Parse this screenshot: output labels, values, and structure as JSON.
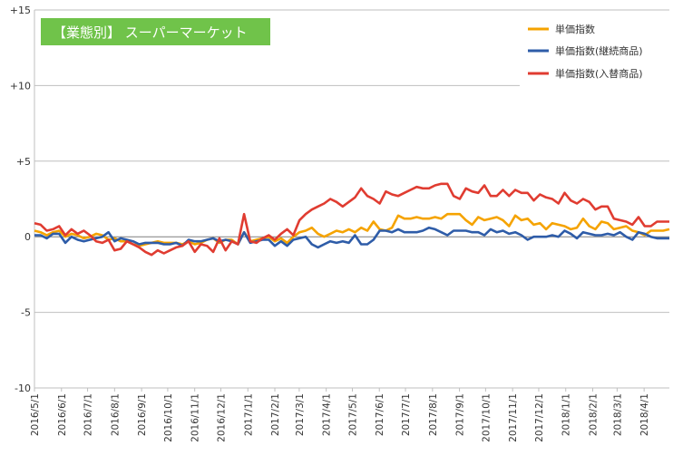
{
  "chart_data": {
    "type": "line",
    "title": "【業態別】 スーパーマーケット",
    "xlabel": "",
    "ylabel": "",
    "ylim": [
      -10,
      15
    ],
    "y_ticks": [
      {
        "value": 15,
        "label": "+15"
      },
      {
        "value": 10,
        "label": "+10"
      },
      {
        "value": 5,
        "label": "+5"
      },
      {
        "value": 0,
        "label": "0"
      },
      {
        "value": -5,
        "label": "-5"
      },
      {
        "value": -10,
        "label": "-10"
      }
    ],
    "x_start": "2016-05-01",
    "x_end": "2018-04-30",
    "x_tick_labels": [
      "2016/5/1",
      "2016/6/1",
      "2016/7/1",
      "2016/8/1",
      "2016/9/1",
      "2016/10/1",
      "2016/11/1",
      "2016/12/1",
      "2017/1/1",
      "2017/2/1",
      "2017/3/1",
      "2017/4/1",
      "2017/5/1",
      "2017/6/1",
      "2017/7/1",
      "2017/8/1",
      "2017/9/1",
      "2017/10/1",
      "2017/11/1",
      "2017/12/1",
      "2018/1/1",
      "2018/2/1",
      "2018/3/1",
      "2018/4/1"
    ],
    "grid": "horizontal",
    "legend_position": "top-right",
    "title_box_color": "#70c34a",
    "series": [
      {
        "name": "単価指数",
        "color": "#f5a300",
        "values": [
          0.4,
          0.3,
          0.1,
          0.3,
          0.4,
          0.0,
          0.2,
          0.1,
          -0.1,
          0.0,
          0.2,
          0.1,
          -0.2,
          -0.1,
          -0.3,
          -0.3,
          -0.5,
          -0.6,
          -0.5,
          -0.4,
          -0.3,
          -0.4,
          -0.4,
          -0.4,
          -0.5,
          -0.3,
          -0.5,
          -0.4,
          -0.2,
          -0.1,
          -0.4,
          -0.2,
          -0.2,
          -0.5,
          0.3,
          -0.3,
          -0.2,
          -0.1,
          0.0,
          -0.3,
          -0.1,
          -0.4,
          0.0,
          0.3,
          0.4,
          0.6,
          0.2,
          0.0,
          0.2,
          0.4,
          0.3,
          0.5,
          0.3,
          0.6,
          0.4,
          1.0,
          0.5,
          0.4,
          0.6,
          1.4,
          1.2,
          1.2,
          1.3,
          1.2,
          1.2,
          1.3,
          1.2,
          1.5,
          1.5,
          1.5,
          1.1,
          0.8,
          1.3,
          1.1,
          1.2,
          1.3,
          1.1,
          0.7,
          1.4,
          1.1,
          1.2,
          0.8,
          0.9,
          0.5,
          0.9,
          0.8,
          0.7,
          0.5,
          0.6,
          1.2,
          0.7,
          0.5,
          1.0,
          0.9,
          0.5,
          0.6,
          0.7,
          0.4,
          0.3,
          0.1,
          0.4,
          0.4,
          0.4,
          0.5
        ]
      },
      {
        "name": "単価指数(継続商品)",
        "color": "#2e5ca8",
        "values": [
          0.1,
          0.1,
          -0.1,
          0.2,
          0.2,
          -0.4,
          0.0,
          -0.2,
          -0.3,
          -0.2,
          -0.1,
          0.0,
          0.3,
          -0.3,
          -0.1,
          -0.2,
          -0.3,
          -0.5,
          -0.4,
          -0.4,
          -0.4,
          -0.5,
          -0.5,
          -0.4,
          -0.6,
          -0.2,
          -0.3,
          -0.3,
          -0.2,
          -0.1,
          -0.3,
          -0.2,
          -0.3,
          -0.5,
          0.3,
          -0.4,
          -0.3,
          -0.2,
          -0.2,
          -0.6,
          -0.3,
          -0.6,
          -0.2,
          -0.1,
          0.0,
          -0.5,
          -0.7,
          -0.5,
          -0.3,
          -0.4,
          -0.3,
          -0.4,
          0.1,
          -0.5,
          -0.5,
          -0.2,
          0.4,
          0.4,
          0.3,
          0.5,
          0.3,
          0.3,
          0.3,
          0.4,
          0.6,
          0.5,
          0.3,
          0.1,
          0.4,
          0.4,
          0.4,
          0.3,
          0.3,
          0.1,
          0.5,
          0.3,
          0.4,
          0.2,
          0.3,
          0.1,
          -0.2,
          0.0,
          0.0,
          0.0,
          0.1,
          0.0,
          0.4,
          0.2,
          -0.1,
          0.3,
          0.2,
          0.1,
          0.1,
          0.2,
          0.1,
          0.3,
          0.0,
          -0.2,
          0.3,
          0.2,
          0.0,
          -0.1,
          -0.1,
          -0.1
        ]
      },
      {
        "name": "単価指数(入替商品)",
        "color": "#e03c31",
        "values": [
          0.9,
          0.8,
          0.4,
          0.5,
          0.7,
          0.1,
          0.5,
          0.2,
          0.4,
          0.1,
          -0.3,
          -0.4,
          -0.2,
          -0.9,
          -0.8,
          -0.3,
          -0.5,
          -0.7,
          -1.0,
          -1.2,
          -0.9,
          -1.1,
          -0.9,
          -0.7,
          -0.6,
          -0.3,
          -1.0,
          -0.5,
          -0.6,
          -1.0,
          -0.1,
          -0.9,
          -0.3,
          -0.5,
          1.5,
          -0.3,
          -0.4,
          -0.1,
          0.1,
          -0.2,
          0.2,
          0.5,
          0.1,
          1.1,
          1.5,
          1.8,
          2.0,
          2.2,
          2.5,
          2.3,
          2.0,
          2.3,
          2.6,
          3.2,
          2.7,
          2.5,
          2.2,
          3.0,
          2.8,
          2.7,
          2.9,
          3.1,
          3.3,
          3.2,
          3.2,
          3.4,
          3.5,
          3.5,
          2.7,
          2.5,
          3.2,
          3.0,
          2.9,
          3.4,
          2.7,
          2.7,
          3.1,
          2.7,
          3.1,
          2.9,
          2.9,
          2.4,
          2.8,
          2.6,
          2.5,
          2.2,
          2.9,
          2.4,
          2.2,
          2.5,
          2.3,
          1.8,
          2.0,
          2.0,
          1.2,
          1.1,
          1.0,
          0.8,
          1.3,
          0.7,
          0.7,
          1.0,
          1.0,
          1.0
        ]
      }
    ]
  }
}
